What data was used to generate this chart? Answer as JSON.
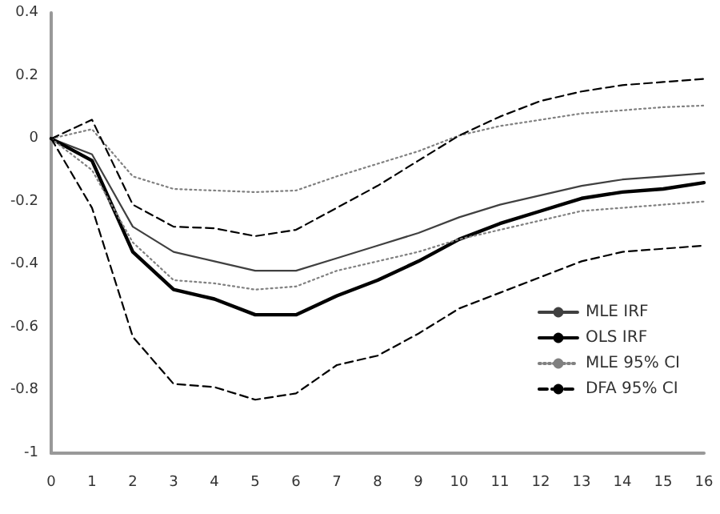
{
  "chart_data": {
    "type": "line",
    "x": [
      0,
      1,
      2,
      3,
      4,
      5,
      6,
      7,
      8,
      9,
      10,
      11,
      12,
      13,
      14,
      15,
      16
    ],
    "xlim": [
      0,
      16
    ],
    "xticks": [
      0,
      1,
      2,
      3,
      4,
      5,
      6,
      7,
      8,
      9,
      10,
      11,
      12,
      13,
      14,
      15,
      16
    ],
    "ylim": [
      -1,
      0.4
    ],
    "yticks": [
      -1,
      -0.8,
      -0.6,
      -0.4,
      -0.2,
      0,
      0.2,
      0.4
    ],
    "grid": false,
    "legend": "bottom right",
    "marker": "none",
    "series": [
      {
        "name": "MLE IRF",
        "color": "#404040",
        "line_style": "solid",
        "values": [
          0,
          -0.05,
          -0.28,
          -0.36,
          -0.39,
          -0.42,
          -0.42,
          -0.38,
          -0.34,
          -0.3,
          -0.25,
          -0.21,
          -0.18,
          -0.15,
          -0.13,
          -0.12,
          -0.11
        ]
      },
      {
        "name": "OLS IRF",
        "color": "#000000",
        "line_style": "solid",
        "values": [
          0,
          -0.07,
          -0.36,
          -0.48,
          -0.51,
          -0.56,
          -0.56,
          -0.5,
          -0.45,
          -0.39,
          -0.32,
          -0.27,
          -0.23,
          -0.19,
          -0.17,
          -0.16,
          -0.14
        ]
      },
      {
        "name": "MLE 95% CI",
        "color": "#808080",
        "line_style": "dotted",
        "values": [
          0,
          0.03,
          -0.12,
          -0.16,
          -0.165,
          -0.17,
          -0.165,
          -0.12,
          -0.08,
          -0.04,
          0.01,
          0.04,
          0.06,
          0.08,
          0.09,
          0.1,
          0.105
        ]
      },
      {
        "color": "#808080",
        "line_style": "dotted",
        "values": [
          0,
          -0.1,
          -0.33,
          -0.45,
          -0.46,
          -0.48,
          -0.47,
          -0.42,
          -0.39,
          -0.36,
          -0.32,
          -0.29,
          -0.26,
          -0.23,
          -0.22,
          -0.21,
          -0.2
        ]
      },
      {
        "name": "DFA 95% CI",
        "color": "#000000",
        "line_style": "dashed",
        "values": [
          0,
          0.06,
          -0.21,
          -0.28,
          -0.285,
          -0.31,
          -0.29,
          -0.22,
          -0.15,
          -0.07,
          0.01,
          0.07,
          0.12,
          0.15,
          0.17,
          0.18,
          0.19
        ]
      },
      {
        "color": "#000000",
        "line_style": "dashed",
        "values": [
          0,
          -0.22,
          -0.63,
          -0.78,
          -0.79,
          -0.83,
          -0.81,
          -0.72,
          -0.69,
          -0.62,
          -0.54,
          -0.49,
          -0.44,
          -0.39,
          -0.36,
          -0.35,
          -0.34
        ]
      }
    ]
  }
}
